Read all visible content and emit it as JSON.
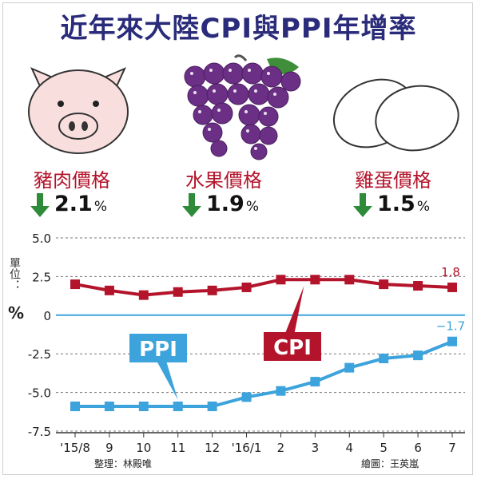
{
  "title": "近年來大陸CPI與PPI年增率",
  "items": [
    {
      "label": "豬肉價格",
      "value": "2.1",
      "unit": "%",
      "icon": "pig-icon",
      "direction": "down"
    },
    {
      "label": "水果價格",
      "value": "1.9",
      "unit": "%",
      "icon": "grapes-icon",
      "direction": "down"
    },
    {
      "label": "雞蛋價格",
      "value": "1.5",
      "unit": "%",
      "icon": "eggs-icon",
      "direction": "down"
    }
  ],
  "colors": {
    "title": "#2a2b7a",
    "item_label": "#b3142b",
    "arrow": "#2e8b3a",
    "cpi": "#b3142b",
    "ppi": "#3da3dc"
  },
  "unit_label": "單位：",
  "unit_symbol": "%",
  "credit_left": "整理：林殿唯",
  "credit_right": "繪圖：王英嵐",
  "chart_data": {
    "type": "line",
    "categories": [
      "'15/8",
      "9",
      "10",
      "11",
      "12",
      "'16/1",
      "2",
      "3",
      "4",
      "5",
      "6",
      "7"
    ],
    "ylim": [
      -7.5,
      5.0
    ],
    "yticks": [
      "5.0",
      "2.5",
      "0",
      "-2.5",
      "-5.0",
      "-7.5"
    ],
    "ytick_values": [
      5.0,
      2.5,
      0,
      -2.5,
      -5.0,
      -7.5
    ],
    "grid": "horizontal dashed",
    "series": [
      {
        "name": "CPI",
        "values": [
          2.0,
          1.6,
          1.3,
          1.5,
          1.6,
          1.8,
          2.3,
          2.3,
          2.3,
          2.0,
          1.9,
          1.8
        ],
        "end_label": "1.8"
      },
      {
        "name": "PPI",
        "values": [
          -5.9,
          -5.9,
          -5.9,
          -5.9,
          -5.9,
          -5.3,
          -4.9,
          -4.3,
          -3.4,
          -2.8,
          -2.6,
          -1.7
        ],
        "end_label": "−1.7"
      }
    ]
  }
}
